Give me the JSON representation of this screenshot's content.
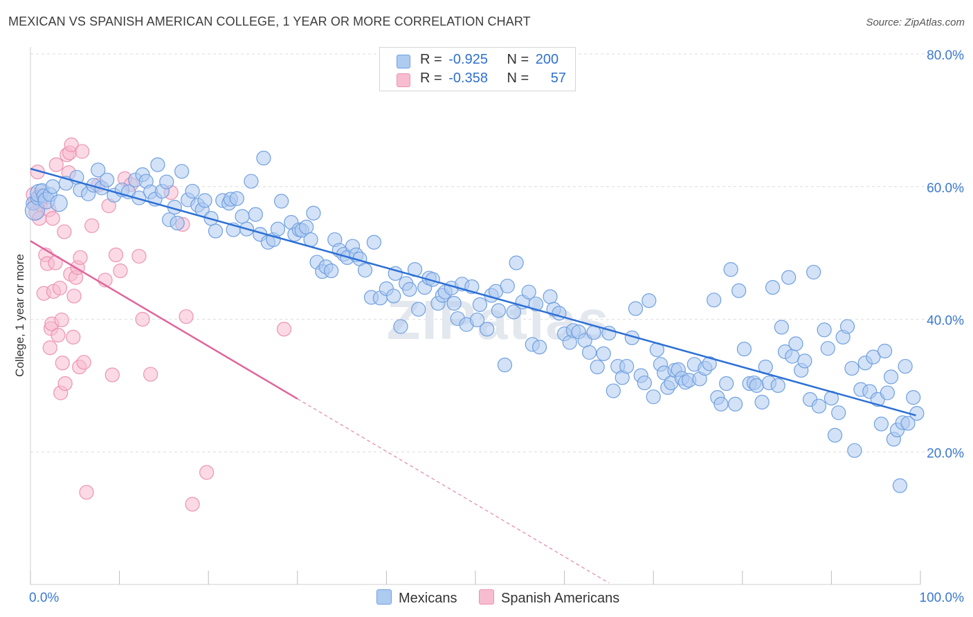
{
  "title": "MEXICAN VS SPANISH AMERICAN COLLEGE, 1 YEAR OR MORE CORRELATION CHART",
  "source": "Source: ZipAtlas.com",
  "watermark": "ZIPatlas",
  "colors": {
    "blue_fill": "#aecbf0",
    "blue_stroke": "#6f9fe0",
    "blue_line": "#2b6fd6",
    "pink_fill": "#f7bcd0",
    "pink_stroke": "#ec92b2",
    "pink_line": "#e0649a",
    "axis_text": "#3b78d0"
  },
  "legend": {
    "r_label": "R =",
    "n_label": "N =",
    "series": [
      {
        "r": "-0.925",
        "n": "200"
      },
      {
        "r": "-0.358",
        "n": "57"
      }
    ]
  },
  "chart_data": {
    "type": "scatter",
    "xlabel": "",
    "ylabel": "College, 1 year or more",
    "xlim": [
      0,
      100
    ],
    "ylim": [
      0,
      80
    ],
    "x_tick_labels": [
      "0.0%",
      "100.0%"
    ],
    "y_tick_labels": [
      "20.0%",
      "40.0%",
      "60.0%",
      "80.0%"
    ],
    "y_ticks": [
      20,
      40,
      60,
      80
    ],
    "grid": true,
    "legend_position": "bottom",
    "series": [
      {
        "name": "Mexicans",
        "color": "#6f9fe0",
        "trend": {
          "x0": 0,
          "y0": 62.7,
          "x1": 99.5,
          "y1": 25.5
        },
        "points": [
          [
            0.3,
            57.5
          ],
          [
            0.5,
            56.4
          ],
          [
            0.8,
            58.3
          ],
          [
            1,
            59
          ],
          [
            1.3,
            59.4
          ],
          [
            1.5,
            58.6
          ],
          [
            1.8,
            57.9
          ],
          [
            2.2,
            58.8
          ],
          [
            2.5,
            60
          ],
          [
            3.2,
            57.5
          ],
          [
            4,
            60.5
          ],
          [
            5.2,
            61.4
          ],
          [
            5.6,
            59.5
          ],
          [
            6.5,
            58.9
          ],
          [
            7.1,
            60.2
          ],
          [
            7.6,
            62.5
          ],
          [
            8,
            59.8
          ],
          [
            8.6,
            61
          ],
          [
            9.4,
            58.7
          ],
          [
            10.3,
            59.5
          ],
          [
            11,
            59.2
          ],
          [
            11.8,
            61
          ],
          [
            12.2,
            58.3
          ],
          [
            12.6,
            61.8
          ],
          [
            13,
            60.8
          ],
          [
            13.5,
            59.2
          ],
          [
            14,
            58.1
          ],
          [
            14.3,
            63.3
          ],
          [
            14.8,
            59.3
          ],
          [
            15.3,
            60.7
          ],
          [
            15.6,
            55
          ],
          [
            16.2,
            56.9
          ],
          [
            16.5,
            54.5
          ],
          [
            17,
            62.3
          ],
          [
            17.7,
            58
          ],
          [
            18.2,
            59.3
          ],
          [
            18.8,
            57.2
          ],
          [
            19.3,
            56.5
          ],
          [
            19.6,
            57.9
          ],
          [
            20.3,
            55.2
          ],
          [
            20.8,
            53.3
          ],
          [
            21.6,
            57.9
          ],
          [
            22.3,
            57.5
          ],
          [
            22.5,
            58.1
          ],
          [
            22.8,
            53.5
          ],
          [
            23.2,
            58.2
          ],
          [
            23.8,
            55.5
          ],
          [
            24.3,
            53.6
          ],
          [
            24.8,
            60.8
          ],
          [
            25.3,
            55.8
          ],
          [
            25.8,
            52.8
          ],
          [
            26.2,
            64.3
          ],
          [
            26.7,
            51.6
          ],
          [
            27.3,
            52
          ],
          [
            27.8,
            53.6
          ],
          [
            28.2,
            57.8
          ],
          [
            29.3,
            54.6
          ],
          [
            29.7,
            52.8
          ],
          [
            30.2,
            53.5
          ],
          [
            30.5,
            53.4
          ],
          [
            31,
            53.9
          ],
          [
            31.5,
            52
          ],
          [
            31.8,
            56
          ],
          [
            32.2,
            48.6
          ],
          [
            32.8,
            47.2
          ],
          [
            33.2,
            47.9
          ],
          [
            33.8,
            47.3
          ],
          [
            34.2,
            52
          ],
          [
            34.7,
            50.4
          ],
          [
            35.2,
            49.8
          ],
          [
            35.6,
            49.3
          ],
          [
            36.2,
            51
          ],
          [
            36.6,
            49.7
          ],
          [
            37,
            49.1
          ],
          [
            37.6,
            47.4
          ],
          [
            38.3,
            43.3
          ],
          [
            38.6,
            51.6
          ],
          [
            39.3,
            43.2
          ],
          [
            40,
            44.6
          ],
          [
            40.8,
            43.5
          ],
          [
            41,
            46.9
          ],
          [
            41.6,
            38.9
          ],
          [
            42.2,
            45.4
          ],
          [
            42.6,
            44.5
          ],
          [
            43.2,
            47.5
          ],
          [
            43.6,
            41.5
          ],
          [
            44.3,
            44.8
          ],
          [
            44.8,
            46.2
          ],
          [
            45.2,
            46
          ],
          [
            45.8,
            42.4
          ],
          [
            46.3,
            43.6
          ],
          [
            46.6,
            44.1
          ],
          [
            47.3,
            44.7
          ],
          [
            47.6,
            42.4
          ],
          [
            48,
            40.1
          ],
          [
            48.5,
            45.3
          ],
          [
            49,
            39.2
          ],
          [
            49.6,
            44.9
          ],
          [
            50.2,
            39.9
          ],
          [
            50.5,
            42.2
          ],
          [
            51.3,
            38.5
          ],
          [
            51.8,
            43.6
          ],
          [
            52.3,
            44.2
          ],
          [
            52.6,
            41.3
          ],
          [
            53.3,
            33.1
          ],
          [
            53.6,
            45
          ],
          [
            54.3,
            41.1
          ],
          [
            54.6,
            48.5
          ],
          [
            55.3,
            42.6
          ],
          [
            56,
            44.1
          ],
          [
            56.4,
            36.2
          ],
          [
            56.8,
            42.3
          ],
          [
            57.2,
            35.8
          ],
          [
            58.4,
            43.4
          ],
          [
            58.8,
            41.5
          ],
          [
            59.4,
            40.9
          ],
          [
            60,
            37.8
          ],
          [
            60.6,
            36.5
          ],
          [
            61,
            38.3
          ],
          [
            61.6,
            38.1
          ],
          [
            62.3,
            36.8
          ],
          [
            62.8,
            35
          ],
          [
            63.3,
            38
          ],
          [
            63.7,
            32.8
          ],
          [
            64.4,
            34.8
          ],
          [
            65,
            37.9
          ],
          [
            65.5,
            29.2
          ],
          [
            66,
            32.9
          ],
          [
            66.5,
            31.2
          ],
          [
            67,
            32.9
          ],
          [
            67.6,
            37.2
          ],
          [
            68,
            41.6
          ],
          [
            68.6,
            31.5
          ],
          [
            69,
            30.4
          ],
          [
            69.5,
            42.8
          ],
          [
            70,
            28.3
          ],
          [
            70.4,
            35.4
          ],
          [
            70.8,
            33.2
          ],
          [
            71.2,
            31.9
          ],
          [
            71.6,
            29.7
          ],
          [
            72,
            30.4
          ],
          [
            72.4,
            32.3
          ],
          [
            72.8,
            32.4
          ],
          [
            73.2,
            31.1
          ],
          [
            73.6,
            30.5
          ],
          [
            74,
            30.8
          ],
          [
            74.6,
            33.2
          ],
          [
            75.2,
            31
          ],
          [
            75.8,
            32.6
          ],
          [
            76.3,
            33.3
          ],
          [
            76.8,
            42.9
          ],
          [
            77.2,
            28.2
          ],
          [
            77.6,
            27.2
          ],
          [
            78.2,
            30.3
          ],
          [
            78.7,
            47.5
          ],
          [
            79.2,
            27.2
          ],
          [
            79.6,
            44.3
          ],
          [
            80.2,
            35.5
          ],
          [
            80.8,
            30.3
          ],
          [
            81.3,
            30.4
          ],
          [
            81.6,
            30
          ],
          [
            82.2,
            27.5
          ],
          [
            82.6,
            32.8
          ],
          [
            83,
            30.4
          ],
          [
            83.4,
            44.8
          ],
          [
            84,
            30
          ],
          [
            84.4,
            38.8
          ],
          [
            84.8,
            35.1
          ],
          [
            85.2,
            46.3
          ],
          [
            85.6,
            34.4
          ],
          [
            86,
            36.3
          ],
          [
            86.6,
            32.3
          ],
          [
            87,
            33.7
          ],
          [
            87.6,
            27.9
          ],
          [
            88,
            47.1
          ],
          [
            88.6,
            26.9
          ],
          [
            89.2,
            38.4
          ],
          [
            89.6,
            35.6
          ],
          [
            90,
            28.1
          ],
          [
            90.4,
            22.5
          ],
          [
            90.8,
            25.9
          ],
          [
            91.3,
            37.3
          ],
          [
            91.8,
            38.9
          ],
          [
            92.3,
            32.6
          ],
          [
            92.6,
            20.2
          ],
          [
            93.3,
            29.4
          ],
          [
            93.8,
            33.4
          ],
          [
            94.3,
            29.1
          ],
          [
            94.7,
            34.3
          ],
          [
            95.2,
            27.9
          ],
          [
            95.6,
            24.2
          ],
          [
            96,
            35.2
          ],
          [
            96.3,
            28.9
          ],
          [
            96.7,
            31.3
          ],
          [
            97,
            21.9
          ],
          [
            97.4,
            23.3
          ],
          [
            97.7,
            14.9
          ],
          [
            98,
            24.4
          ],
          [
            98.3,
            32.9
          ],
          [
            98.6,
            24.3
          ],
          [
            99.2,
            28.2
          ],
          [
            99.6,
            25.8
          ]
        ]
      },
      {
        "name": "Spanish Americans",
        "color": "#ec92b2",
        "trend": {
          "x0": 0,
          "y0": 51.8,
          "x1": 30,
          "y1": 28,
          "x_dash_end": 65
        },
        "points": [
          [
            0.3,
            58.8
          ],
          [
            0.5,
            57.5
          ],
          [
            0.6,
            56.1
          ],
          [
            0.8,
            62.2
          ],
          [
            1,
            55.2
          ],
          [
            1.1,
            57.3
          ],
          [
            1.2,
            58.7
          ],
          [
            1.5,
            43.9
          ],
          [
            1.7,
            49.7
          ],
          [
            1.9,
            48.4
          ],
          [
            2.1,
            56.5
          ],
          [
            2.2,
            35.7
          ],
          [
            2.3,
            38.6
          ],
          [
            2.4,
            39.3
          ],
          [
            2.5,
            55.2
          ],
          [
            2.6,
            44.2
          ],
          [
            2.8,
            48.5
          ],
          [
            2.9,
            63.3
          ],
          [
            3.1,
            37.6
          ],
          [
            3.3,
            44.7
          ],
          [
            3.4,
            28.9
          ],
          [
            3.5,
            39.9
          ],
          [
            3.6,
            33.4
          ],
          [
            3.8,
            53.2
          ],
          [
            3.9,
            30.3
          ],
          [
            4.1,
            64.8
          ],
          [
            4.3,
            62.1
          ],
          [
            4.4,
            65.1
          ],
          [
            4.5,
            46.8
          ],
          [
            4.6,
            66.3
          ],
          [
            4.8,
            37.3
          ],
          [
            4.9,
            43.5
          ],
          [
            5.1,
            46.3
          ],
          [
            5.3,
            47.8
          ],
          [
            5.5,
            32.8
          ],
          [
            5.6,
            49.3
          ],
          [
            5.8,
            65.3
          ],
          [
            6,
            33.5
          ],
          [
            6.3,
            13.9
          ],
          [
            6.9,
            54.1
          ],
          [
            7.6,
            60.2
          ],
          [
            8.4,
            45.9
          ],
          [
            8.8,
            57.1
          ],
          [
            9.2,
            31.6
          ],
          [
            9.6,
            49.7
          ],
          [
            10.1,
            47.3
          ],
          [
            10.6,
            61.2
          ],
          [
            11.3,
            60.3
          ],
          [
            12.2,
            49.5
          ],
          [
            12.6,
            40
          ],
          [
            13.5,
            31.7
          ],
          [
            15.8,
            59.1
          ],
          [
            17.1,
            54.3
          ],
          [
            17.5,
            40.4
          ],
          [
            18.2,
            12.1
          ],
          [
            19.8,
            16.9
          ],
          [
            28.5,
            38.5
          ]
        ]
      }
    ]
  }
}
